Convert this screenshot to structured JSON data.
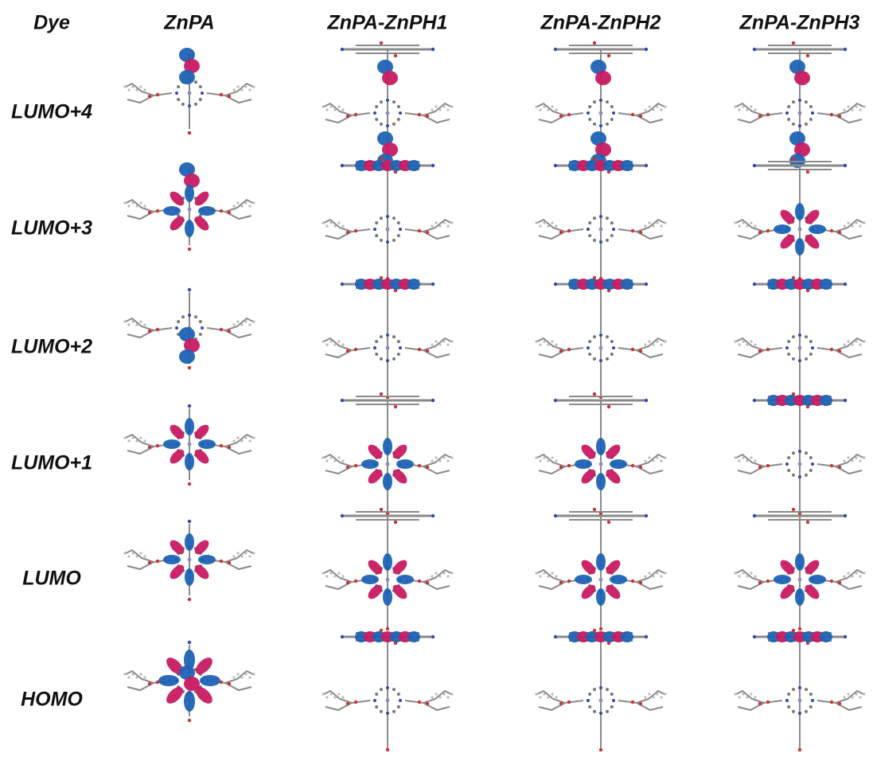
{
  "table": {
    "header": [
      "Dye",
      "ZnPA",
      "ZnPA-ZnPH1",
      "ZnPA-ZnPH2",
      "ZnPA-ZnPH3"
    ],
    "rows": [
      "LUMO+4",
      "LUMO+3",
      "LUMO+2",
      "LUMO+1",
      "LUMO",
      "HOMO"
    ]
  }
}
